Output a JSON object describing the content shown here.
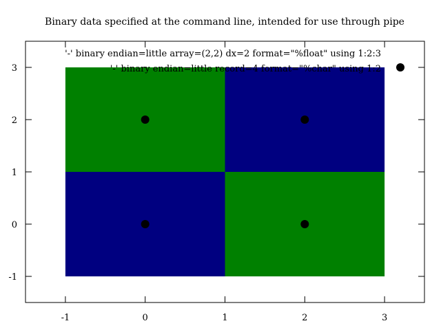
{
  "chart_data": {
    "type": "heatmap",
    "title": "Binary data specified at the command line, intended for use through pipe",
    "xlabel": "",
    "ylabel": "",
    "xlim": [
      -1.5,
      3.5
    ],
    "ylim": [
      -1.5,
      3.5
    ],
    "xticks": [
      -1,
      0,
      1,
      2,
      3
    ],
    "yticks": [
      -1,
      0,
      1,
      2,
      3
    ],
    "xtick_labels": [
      "-1",
      "0",
      "1",
      "2",
      "3"
    ],
    "ytick_labels": [
      "-1",
      "0",
      "1",
      "2",
      "3"
    ],
    "grid": false,
    "legend_position": "top-right",
    "series": [
      {
        "name": "'-' binary endian=little array=(2,2) dx=2 format=\"%float\" using 1:2:3",
        "kind": "image",
        "cells": [
          {
            "x": 0,
            "y": 0,
            "z": 0
          },
          {
            "x": 2,
            "y": 0,
            "z": 1
          },
          {
            "x": 0,
            "y": 2,
            "z": 1
          },
          {
            "x": 2,
            "y": 2,
            "z": 0
          }
        ],
        "cell_width": 2,
        "cell_height": 2,
        "palette": {
          "0": "#000080",
          "1": "#008000"
        }
      },
      {
        "name": "'-' binary endian=little record=4 format=\"%char\" using 1:2",
        "kind": "points",
        "color": "#000000",
        "points": [
          {
            "x": 0,
            "y": 0
          },
          {
            "x": 2,
            "y": 0
          },
          {
            "x": 0,
            "y": 2
          },
          {
            "x": 2,
            "y": 2
          }
        ]
      }
    ]
  }
}
